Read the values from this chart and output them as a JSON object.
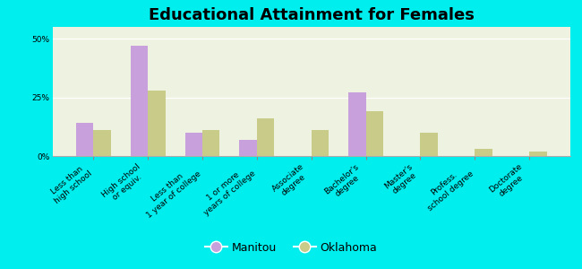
{
  "title": "Educational Attainment for Females",
  "categories": [
    "Less than\nhigh school",
    "High school\nor equiv.",
    "Less than\n1 year of college",
    "1 or more\nyears of college",
    "Associate\ndegree",
    "Bachelor's\ndegree",
    "Master's\ndegree",
    "Profess.\nschool degree",
    "Doctorate\ndegree"
  ],
  "manitou_values": [
    14,
    47,
    10,
    7,
    0,
    27,
    0,
    0,
    0
  ],
  "oklahoma_values": [
    11,
    28,
    11,
    16,
    11,
    19,
    10,
    3,
    2
  ],
  "manitou_color": "#c8a0dc",
  "oklahoma_color": "#c8cc88",
  "background_color": "#00eeee",
  "plot_bg_color": "#eef2e0",
  "yticks": [
    0,
    25,
    50
  ],
  "ylim": [
    0,
    55
  ],
  "legend_labels": [
    "Manitou",
    "Oklahoma"
  ],
  "title_fontsize": 13,
  "tick_fontsize": 6.5,
  "legend_fontsize": 9,
  "bar_width": 0.32
}
